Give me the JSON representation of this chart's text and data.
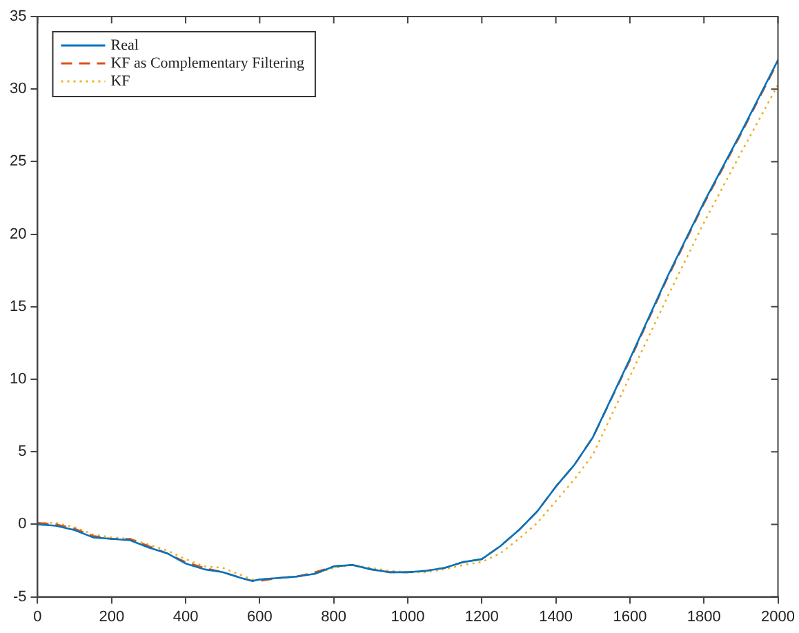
{
  "chart_data": {
    "type": "line",
    "x": [
      0,
      50,
      100,
      150,
      200,
      250,
      300,
      350,
      400,
      450,
      500,
      550,
      580,
      600,
      650,
      700,
      750,
      800,
      850,
      900,
      950,
      1000,
      1050,
      1100,
      1150,
      1200,
      1250,
      1300,
      1350,
      1400,
      1450,
      1500,
      1600,
      1700,
      1800,
      1900,
      2000
    ],
    "series": [
      {
        "name": "Real",
        "color": "#0072bd",
        "line_style": "solid",
        "values": [
          0,
          -0.1,
          -0.4,
          -0.9,
          -1.0,
          -1.1,
          -1.6,
          -2.0,
          -2.7,
          -3.1,
          -3.3,
          -3.7,
          -3.9,
          -3.8,
          -3.7,
          -3.6,
          -3.4,
          -2.9,
          -2.8,
          -3.1,
          -3.3,
          -3.3,
          -3.2,
          -3.0,
          -2.6,
          -2.4,
          -1.5,
          -0.4,
          0.9,
          2.6,
          4.1,
          6.0,
          11.4,
          17.0,
          22.2,
          27.0,
          32.0
        ]
      },
      {
        "name": "KF as Complementary Filtering",
        "color": "#d95319",
        "line_style": "dashed",
        "values": [
          0.1,
          0,
          -0.3,
          -0.8,
          -1.0,
          -1.0,
          -1.5,
          -2.0,
          -2.6,
          -3.0,
          -3.3,
          -3.7,
          -3.9,
          -3.9,
          -3.7,
          -3.6,
          -3.3,
          -2.9,
          -2.8,
          -3.1,
          -3.3,
          -3.3,
          -3.2,
          -3.0,
          -2.6,
          -2.4,
          -1.5,
          -0.4,
          0.9,
          2.6,
          4.1,
          6.0,
          11.3,
          16.9,
          22.1,
          26.9,
          31.9
        ]
      },
      {
        "name": "KF",
        "color": "#edb120",
        "line_style": "dotted",
        "values": [
          0.1,
          0.1,
          -0.2,
          -0.7,
          -0.9,
          -1.0,
          -1.4,
          -1.8,
          -2.4,
          -2.9,
          -3.0,
          -3.5,
          -3.8,
          -3.8,
          -3.7,
          -3.6,
          -3.4,
          -3.0,
          -2.8,
          -3.0,
          -3.2,
          -3.3,
          -3.3,
          -3.1,
          -2.8,
          -2.6,
          -2.0,
          -1.0,
          0.1,
          1.6,
          3.1,
          4.8,
          10.2,
          15.6,
          20.8,
          25.6,
          30.3
        ]
      }
    ],
    "xlim": [
      0,
      2000
    ],
    "xticks": [
      0,
      200,
      400,
      600,
      800,
      1000,
      1200,
      1400,
      1600,
      1800,
      2000
    ],
    "ylim": [
      -5,
      35
    ],
    "yticks": [
      -5,
      0,
      5,
      10,
      15,
      20,
      25,
      30,
      35
    ],
    "grid": false,
    "legend": "top left",
    "marker": "none"
  }
}
